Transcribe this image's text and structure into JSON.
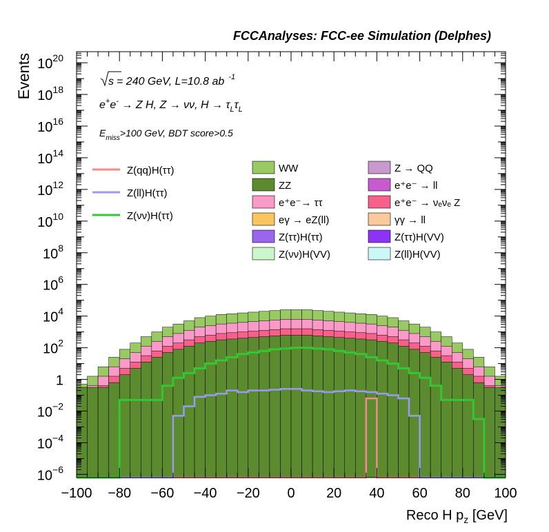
{
  "chart_data": {
    "type": "histogram-stack",
    "title": "FCCAnalyses: FCC-ee Simulation (Delphes)",
    "xlabel": "Reco H p",
    "xlabel_sub": "z",
    "xlabel_unit": " [GeV]",
    "ylabel": "Events",
    "xlim": [
      -100,
      100
    ],
    "ylim_log10": [
      -6.2,
      20.7
    ],
    "log_y": true,
    "xticks": [
      -100,
      -80,
      -60,
      -40,
      -20,
      0,
      20,
      40,
      60,
      80,
      100
    ],
    "xtick_labels": [
      "−100",
      "−80",
      "−60",
      "−40",
      "−20",
      "0",
      "20",
      "40",
      "60",
      "80",
      "100"
    ],
    "yticks": [
      {
        "exp": -6,
        "label": "10",
        "sup": "−6"
      },
      {
        "exp": -4,
        "label": "10",
        "sup": "−4"
      },
      {
        "exp": -2,
        "label": "10",
        "sup": "−2"
      },
      {
        "exp": 0,
        "label": "1",
        "sup": ""
      },
      {
        "exp": 2,
        "label": "10",
        "sup": "2"
      },
      {
        "exp": 4,
        "label": "10",
        "sup": "4"
      },
      {
        "exp": 6,
        "label": "10",
        "sup": "6"
      },
      {
        "exp": 8,
        "label": "10",
        "sup": "8"
      },
      {
        "exp": 10,
        "label": "10",
        "sup": "10"
      },
      {
        "exp": 12,
        "label": "10",
        "sup": "12"
      },
      {
        "exp": 14,
        "label": "10",
        "sup": "14"
      },
      {
        "exp": 16,
        "label": "10",
        "sup": "16"
      },
      {
        "exp": 18,
        "label": "10",
        "sup": "18"
      },
      {
        "exp": 20,
        "label": "10",
        "sup": "20"
      }
    ],
    "bin_width": 5,
    "stack_total_log10": [
      -0.3,
      0.2,
      0.8,
      1.4,
      1.9,
      2.3,
      2.7,
      3.0,
      3.3,
      3.5,
      3.7,
      3.9,
      4.0,
      4.1,
      4.15,
      4.2,
      4.25,
      4.3,
      4.35,
      4.4,
      4.4,
      4.4,
      4.35,
      4.3,
      4.25,
      4.2,
      4.15,
      4.1,
      4.0,
      3.9,
      3.7,
      3.5,
      3.3,
      3.0,
      2.7,
      2.3,
      1.9,
      1.4,
      0.8,
      0.2
    ],
    "stack_components": [
      {
        "name": "ZZ",
        "color": "#5c8a2e",
        "profile": "zz"
      },
      {
        "name": "Z(νν)H(VV)",
        "color": "#ccf7cc",
        "profile": "mid"
      },
      {
        "name": "Z(ll)H(VV)",
        "color": "#ccf7f7",
        "profile": "mid"
      },
      {
        "name": "eγ → eZ(ll)",
        "color": "#fbc55e",
        "profile": "mid"
      },
      {
        "name": "Z(ττ)H(VV)",
        "color": "#8c33f5",
        "profile": "low"
      },
      {
        "name": "Z(ττ)H(ττ)",
        "color": "#9a66f0",
        "profile": "low"
      },
      {
        "name": "Z → QQ",
        "color": "#c899cc",
        "profile": "center"
      },
      {
        "name": "e⁺e⁻ → νₑνₑ Z",
        "color": "#f7608a",
        "profile": "mid2"
      },
      {
        "name": "e⁺e⁻ → ττ",
        "color": "#f99ac8",
        "profile": "top2"
      },
      {
        "name": "WW",
        "color": "#98c963",
        "profile": "top"
      }
    ],
    "series": [
      {
        "name": "Z(qq)H(ττ)",
        "color": "#f48a8a"
      },
      {
        "name": "Z(ll)H(ττ)",
        "color": "#9a9af5"
      },
      {
        "name": "Z(νν)H(ττ)",
        "color": "#33c733"
      }
    ],
    "signal_znn_log10": [
      -6.2,
      -6.2,
      -6.2,
      -6.2,
      -1.3,
      -1.3,
      -1.3,
      -1.3,
      -0.4,
      0.1,
      0.4,
      0.7,
      1.0,
      1.2,
      1.4,
      1.6,
      1.7,
      1.8,
      1.9,
      1.95,
      2.0,
      2.0,
      1.95,
      1.9,
      1.8,
      1.7,
      1.6,
      1.4,
      1.2,
      1.0,
      0.7,
      0.4,
      0.1,
      -0.4,
      -1.3,
      -1.3,
      -1.3,
      -2.5,
      -6.2,
      -6.2
    ],
    "signal_zll_log10": [
      -6.2,
      -6.2,
      -6.2,
      -6.2,
      -6.2,
      -6.2,
      -6.2,
      -6.2,
      -6.2,
      -2.3,
      -1.7,
      -1.1,
      -1.0,
      -0.9,
      -0.7,
      -0.8,
      -0.7,
      -0.7,
      -0.65,
      -0.6,
      -0.6,
      -0.7,
      -0.75,
      -0.8,
      -0.75,
      -0.7,
      -0.75,
      -0.8,
      -0.9,
      -1.0,
      -1.2,
      -2.3,
      -6.2,
      -6.2,
      -6.2,
      -6.2,
      -6.2,
      -6.2,
      -6.2,
      -6.2
    ],
    "signal_zqq_log10": [
      -6.2,
      -6.2,
      -6.2,
      -6.2,
      -6.2,
      -6.2,
      -6.2,
      -6.2,
      -6.2,
      -6.2,
      -6.2,
      -6.2,
      -6.2,
      -6.2,
      -6.2,
      -6.2,
      -6.2,
      -6.2,
      -6.2,
      -6.2,
      -6.2,
      -6.2,
      -6.2,
      -6.2,
      -6.2,
      -6.2,
      -6.2,
      -1.2,
      -6.2,
      -6.2,
      -6.2,
      -6.2,
      -6.2,
      -6.2,
      -6.2,
      -6.2,
      -6.2,
      -6.2,
      -6.2,
      -6.2
    ],
    "annotations": {
      "energy": "= 240 GeV, L=10.8 ab",
      "energy_prefix": "s",
      "lumi_exp": "-1",
      "process_prefix": "e",
      "process_mid": "e",
      "process_rest": " → Z H, Z  → νν, H → τ",
      "process_sub": "L",
      "process_tail": "τ",
      "cut_prefix": "E",
      "cut_sub": "miss",
      "cut_rest": ">100 GeV, BDT score>0.5"
    },
    "legend_left": [
      {
        "label": "Z(qq)H(ττ)",
        "color": "#f48a8a"
      },
      {
        "label": "Z(ll)H(ττ)",
        "color": "#9a9af5"
      },
      {
        "label": "Z(νν)H(ττ)",
        "color": "#33c733"
      }
    ],
    "legend_mid": [
      {
        "label": "WW",
        "color": "#98c963"
      },
      {
        "label": "ZZ",
        "color": "#5c8a2e"
      },
      {
        "label": "e⁺e⁻→ ττ",
        "color": "#f99ac8"
      },
      {
        "label": "eγ → eZ(ll)",
        "color": "#fbc55e"
      },
      {
        "label": "Z(ττ)H(ττ)",
        "color": "#9a66f0"
      },
      {
        "label": "Z(νν)H(VV)",
        "color": "#ccf7cc"
      }
    ],
    "legend_right": [
      {
        "label": "Z → QQ",
        "color": "#c899cc"
      },
      {
        "label": "e⁺e⁻ → ll",
        "color": "#c85ad0"
      },
      {
        "label": "e⁺e⁻ → νₑνₑ Z",
        "color": "#f7608a"
      },
      {
        "label": "γγ → ll",
        "color": "#fbc99a"
      },
      {
        "label": "Z(ττ)H(VV)",
        "color": "#8c33f5"
      },
      {
        "label": "Z(ll)H(VV)",
        "color": "#ccf7f7"
      }
    ]
  }
}
